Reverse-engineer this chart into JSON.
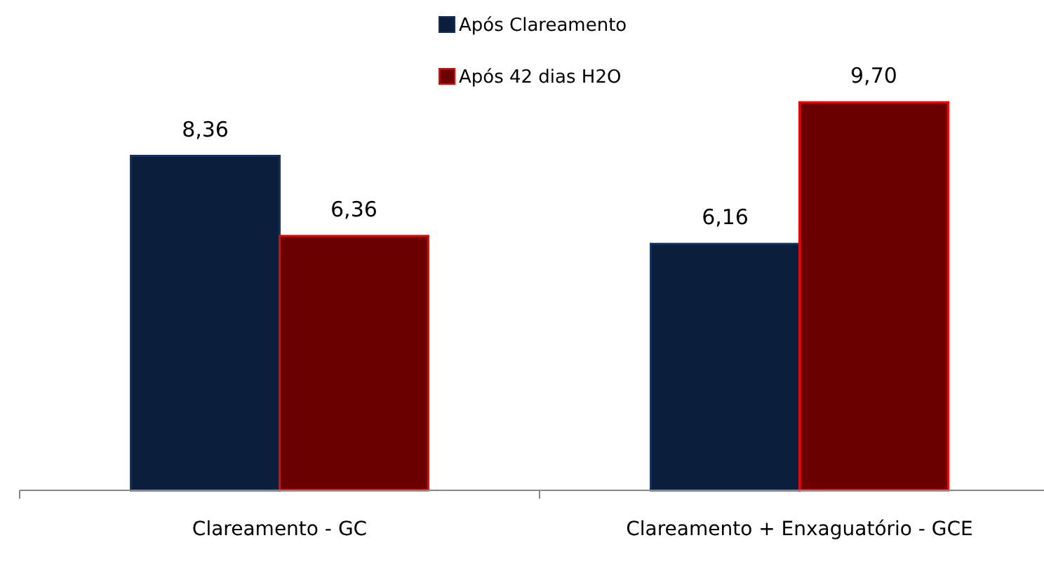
{
  "chart_data": {
    "type": "bar",
    "categories": [
      "Clareamento - GC",
      "Clareamento + Enxaguatório - GCE"
    ],
    "series": [
      {
        "name": "Após Clareamento",
        "color": "#0b1e3b",
        "values": [
          8.36,
          6.16
        ],
        "value_labels": [
          "8,36",
          "6,16"
        ]
      },
      {
        "name": "Após 42 dias H2O",
        "color": "#6b0000",
        "values": [
          6.36,
          9.7
        ],
        "value_labels": [
          "6,36",
          "9,70"
        ]
      }
    ],
    "legend": "top"
  }
}
